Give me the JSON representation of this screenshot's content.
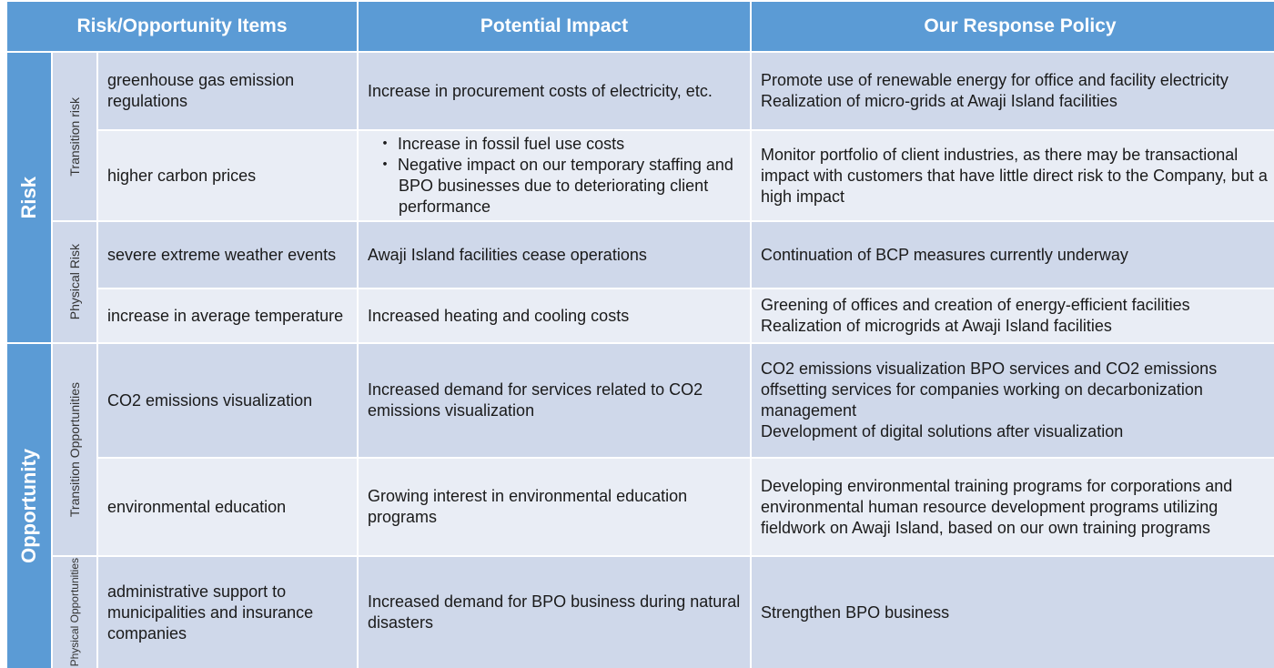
{
  "header": {
    "items": "Risk/Opportunity Items",
    "impact": "Potential Impact",
    "policy": "Our Response Policy"
  },
  "categories": {
    "risk": "Risk",
    "opportunity": "Opportunity"
  },
  "subcategories": {
    "transition_risk": "Transition risk",
    "physical_risk": "Physical Risk",
    "transition_opportunities": "Transition Opportunities",
    "physical_opportunities": "Physical Opportunities"
  },
  "rows": [
    {
      "item": "greenhouse gas emission regulations",
      "impact": [
        "Increase in procurement costs of electricity, etc."
      ],
      "policy": [
        "Promote use of renewable energy for office and facility electricity",
        "Realization of micro-grids at Awaji Island facilities"
      ]
    },
    {
      "item": "higher carbon prices",
      "impact": [
        "・ Increase in fossil fuel use costs",
        "・ Negative impact on our temporary staffing and BPO businesses due to deteriorating client performance"
      ],
      "policy": [
        "Monitor portfolio of client industries, as there may be transactional impact with customers that have little direct risk to the Company, but a high impact"
      ]
    },
    {
      "item": "severe extreme weather events",
      "impact": [
        "Awaji Island facilities cease operations"
      ],
      "policy": [
        "Continuation of BCP measures currently underway"
      ]
    },
    {
      "item": "increase in average temperature",
      "impact": [
        "Increased heating and cooling costs"
      ],
      "policy": [
        "Greening of offices and creation of energy-efficient facilities",
        "Realization of microgrids at Awaji Island facilities"
      ]
    },
    {
      "item": "CO2 emissions visualization",
      "impact": [
        "Increased demand for services related to CO2 emissions visualization"
      ],
      "policy": [
        "CO2 emissions visualization BPO services and CO2 emissions offsetting services for companies working on decarbonization management",
        "Development of digital solutions after visualization"
      ]
    },
    {
      "item": "environmental education",
      "impact": [
        "Growing interest in environmental education programs"
      ],
      "policy": [
        "Developing environmental training programs for corporations and environmental human resource development programs utilizing fieldwork on Awaji Island, based on our own training programs"
      ]
    },
    {
      "item": "administrative support to municipalities and insurance companies",
      "impact": [
        "Increased demand for BPO business during natural disasters"
      ],
      "policy": [
        "Strengthen BPO business"
      ]
    }
  ],
  "colors": {
    "header_blue": "#5b9bd5",
    "row_dark": "#cfd8ea",
    "row_light": "#e9edf5"
  }
}
